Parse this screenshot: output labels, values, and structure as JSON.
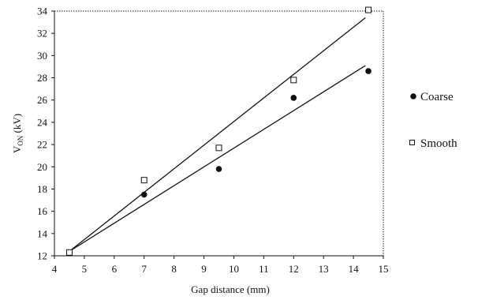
{
  "chart_data": {
    "type": "scatter",
    "xlabel": "Gap distance (mm)",
    "ylabel": {
      "main": "V",
      "sub": "ON",
      "unit": " (kV)"
    },
    "xlim": [
      4,
      15
    ],
    "ylim": [
      12,
      34
    ],
    "x_ticks": [
      4,
      5,
      6,
      7,
      8,
      9,
      10,
      11,
      12,
      13,
      14,
      15
    ],
    "y_ticks": [
      12,
      14,
      16,
      18,
      20,
      22,
      24,
      26,
      28,
      30,
      32,
      34
    ],
    "grid": false,
    "legend_position": "right",
    "series": [
      {
        "name": "Coarse",
        "marker": "filled-circle",
        "x": [
          4.5,
          7.0,
          9.5,
          12.0,
          14.5
        ],
        "y": [
          12.3,
          17.5,
          19.8,
          26.2,
          28.6
        ],
        "fit": {
          "x": [
            4.5,
            14.4
          ],
          "y": [
            12.4,
            29.1
          ]
        }
      },
      {
        "name": "Smooth",
        "marker": "open-square",
        "x": [
          4.5,
          7.0,
          9.5,
          12.0,
          14.5
        ],
        "y": [
          12.3,
          18.8,
          21.7,
          27.8,
          34.1
        ],
        "fit": {
          "x": [
            4.5,
            14.4
          ],
          "y": [
            12.4,
            33.4
          ]
        }
      }
    ]
  }
}
